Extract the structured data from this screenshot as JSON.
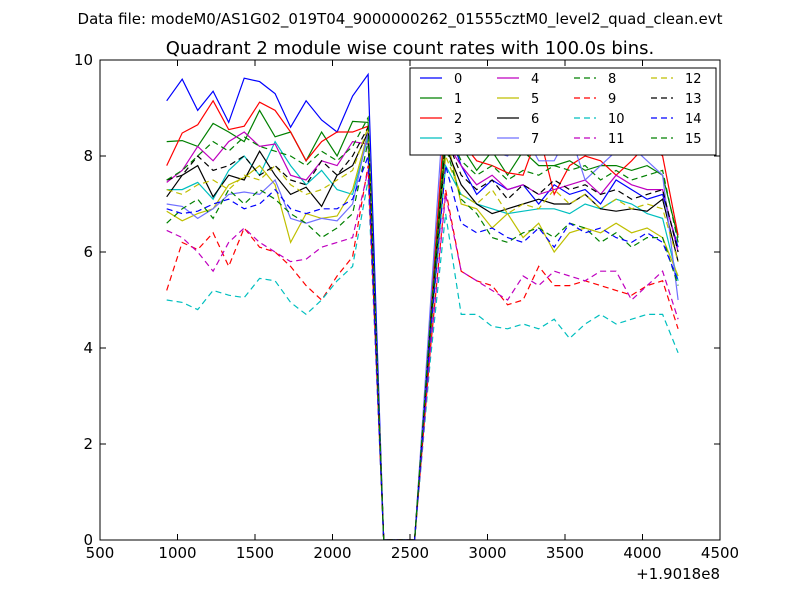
{
  "chart_data": {
    "type": "line",
    "suptitle": "Data file: modeM0/AS1G02_019T04_9000000262_01555cztM0_level2_quad_clean.evt",
    "title": "Quadrant 2 module wise count rates with 100.0s bins.",
    "xlabel": "",
    "ylabel": "",
    "xlim": [
      500,
      4500
    ],
    "ylim": [
      0,
      10
    ],
    "x_offset_label": "+1.9018e8",
    "x_ticks": [
      500,
      1000,
      1500,
      2000,
      2500,
      3000,
      3500,
      4000,
      4500
    ],
    "y_ticks": [
      0,
      2,
      4,
      6,
      8,
      10
    ],
    "legend_position": "top-right",
    "legend_columns": 4,
    "x": [
      930,
      1030,
      1130,
      1230,
      1330,
      1430,
      1530,
      1630,
      1730,
      1830,
      1930,
      2030,
      2130,
      2230,
      2330,
      2430,
      2530,
      2630,
      2730,
      2830,
      2930,
      3030,
      3130,
      3230,
      3330,
      3430,
      3530,
      3630,
      3730,
      3830,
      3930,
      4030,
      4130,
      4230
    ],
    "series": [
      {
        "name": "0",
        "color": "#0000ff",
        "dash": "solid",
        "values": [
          9.15,
          9.6,
          8.95,
          9.35,
          8.7,
          9.62,
          9.55,
          9.3,
          8.6,
          9.15,
          8.75,
          8.5,
          9.25,
          9.7,
          0,
          0,
          0,
          4.5,
          8.7,
          7.8,
          7.2,
          7.5,
          7.3,
          7.4,
          7.0,
          7.4,
          7.2,
          7.3,
          7.0,
          7.5,
          7.3,
          7.1,
          7.2,
          6.1
        ]
      },
      {
        "name": "1",
        "color": "#008000",
        "dash": "solid",
        "values": [
          8.3,
          8.32,
          8.2,
          8.68,
          8.5,
          8.3,
          8.95,
          8.4,
          8.5,
          7.9,
          8.5,
          8.0,
          8.72,
          8.7,
          0,
          0,
          0,
          4.4,
          8.6,
          8.2,
          7.7,
          8.1,
          7.6,
          8.1,
          7.8,
          7.8,
          7.9,
          7.7,
          7.8,
          7.8,
          7.7,
          7.8,
          7.6,
          6.3
        ]
      },
      {
        "name": "2",
        "color": "#ff0000",
        "dash": "solid",
        "values": [
          7.8,
          8.48,
          8.65,
          9.15,
          8.55,
          8.62,
          9.12,
          8.95,
          8.5,
          7.9,
          8.3,
          8.5,
          8.5,
          8.62,
          0,
          0,
          0,
          4.6,
          9.0,
          8.3,
          7.9,
          7.8,
          7.65,
          7.6,
          8.5,
          7.2,
          7.8,
          8.0,
          7.9,
          7.6,
          7.9,
          8.25,
          8.0,
          6.35
        ]
      },
      {
        "name": "3",
        "color": "#00bfbf",
        "dash": "solid",
        "values": [
          7.3,
          7.3,
          7.45,
          7.1,
          7.7,
          8.0,
          7.6,
          8.3,
          7.8,
          7.4,
          7.7,
          7.3,
          7.2,
          8.4,
          0,
          0,
          0,
          4.2,
          7.8,
          7.2,
          7.0,
          6.9,
          6.8,
          6.85,
          6.9,
          6.9,
          6.8,
          7.0,
          6.9,
          7.1,
          7.0,
          6.8,
          6.7,
          5.4
        ]
      },
      {
        "name": "4",
        "color": "#bf00bf",
        "dash": "solid",
        "values": [
          7.45,
          7.7,
          8.2,
          7.9,
          8.3,
          8.5,
          8.2,
          8.25,
          7.6,
          7.5,
          7.9,
          7.8,
          8.3,
          8.25,
          0,
          0,
          0,
          4.3,
          8.3,
          7.8,
          7.4,
          7.6,
          7.3,
          7.4,
          7.2,
          7.3,
          7.4,
          7.5,
          7.2,
          7.6,
          7.4,
          7.3,
          7.3,
          6.0
        ]
      },
      {
        "name": "5",
        "color": "#bfbf00",
        "dash": "solid",
        "values": [
          6.85,
          6.65,
          6.8,
          6.9,
          7.4,
          7.55,
          7.8,
          7.4,
          6.2,
          6.8,
          6.7,
          6.75,
          7.3,
          8.5,
          0,
          0,
          0,
          4.1,
          8.5,
          7.0,
          6.9,
          6.5,
          6.8,
          6.3,
          6.6,
          6.0,
          6.4,
          6.5,
          6.4,
          6.6,
          6.4,
          6.5,
          6.3,
          5.5
        ]
      },
      {
        "name": "6",
        "color": "#000000",
        "dash": "solid",
        "values": [
          7.15,
          7.6,
          7.8,
          7.15,
          7.6,
          7.5,
          8.1,
          7.6,
          7.2,
          7.35,
          6.95,
          7.6,
          7.8,
          8.5,
          0,
          0,
          0,
          4.3,
          8.2,
          7.4,
          7.0,
          6.8,
          6.9,
          7.0,
          7.1,
          7.0,
          7.0,
          7.2,
          6.9,
          6.85,
          6.9,
          6.85,
          7.1,
          5.8
        ]
      },
      {
        "name": "7",
        "color": "#7070ff",
        "dash": "solid",
        "values": [
          7.0,
          6.95,
          6.7,
          6.9,
          7.2,
          7.25,
          7.2,
          7.5,
          6.7,
          6.6,
          6.7,
          6.65,
          7.0,
          8.5,
          0,
          0,
          0,
          4.8,
          9.6,
          8.7,
          8.2,
          8.1,
          8.0,
          8.5,
          7.9,
          7.9,
          8.5,
          7.5,
          7.8,
          8.1,
          8.2,
          7.9,
          7.6,
          5.0
        ]
      },
      {
        "name": "8",
        "color": "#008000",
        "dash": "dashed",
        "values": [
          6.6,
          6.9,
          7.1,
          6.7,
          7.3,
          7.0,
          7.3,
          7.1,
          6.8,
          6.6,
          6.3,
          6.5,
          6.8,
          8.3,
          0,
          0,
          0,
          4.2,
          8.2,
          7.1,
          6.8,
          6.3,
          6.2,
          6.4,
          6.5,
          6.3,
          6.6,
          6.5,
          6.2,
          6.4,
          6.1,
          6.3,
          6.3,
          5.3
        ]
      },
      {
        "name": "9",
        "color": "#ff0000",
        "dash": "dashed",
        "values": [
          5.2,
          6.2,
          6.05,
          6.4,
          5.7,
          6.5,
          6.1,
          6.0,
          5.7,
          5.3,
          5.0,
          5.5,
          5.9,
          7.8,
          0,
          0,
          0,
          3.9,
          7.3,
          5.6,
          5.4,
          5.3,
          4.9,
          5.0,
          5.7,
          5.3,
          5.3,
          5.4,
          5.3,
          5.2,
          5.1,
          5.3,
          5.4,
          4.4
        ]
      },
      {
        "name": "10",
        "color": "#00bfbf",
        "dash": "dashed",
        "values": [
          5.0,
          4.95,
          4.8,
          5.2,
          5.1,
          5.05,
          5.45,
          5.4,
          4.95,
          4.7,
          5.0,
          5.4,
          5.7,
          7.5,
          0,
          0,
          0,
          3.7,
          6.8,
          4.7,
          4.7,
          4.45,
          4.4,
          4.5,
          4.4,
          4.6,
          4.2,
          4.5,
          4.7,
          4.5,
          4.6,
          4.7,
          4.7,
          3.9
        ]
      },
      {
        "name": "11",
        "color": "#bf00bf",
        "dash": "dashed",
        "values": [
          6.45,
          6.3,
          6.0,
          5.6,
          6.2,
          6.5,
          6.2,
          6.0,
          5.8,
          5.85,
          6.1,
          6.2,
          6.3,
          7.7,
          0,
          0,
          0,
          3.9,
          7.2,
          5.6,
          5.4,
          5.2,
          5.0,
          5.5,
          5.3,
          5.6,
          5.5,
          5.4,
          5.6,
          5.6,
          5.0,
          5.3,
          5.6,
          4.6
        ]
      },
      {
        "name": "12",
        "color": "#bfbf00",
        "dash": "dashed",
        "values": [
          7.3,
          7.2,
          7.4,
          7.5,
          7.3,
          7.6,
          7.5,
          7.8,
          7.4,
          7.2,
          7.3,
          7.5,
          7.7,
          8.6,
          0,
          0,
          0,
          4.2,
          8.0,
          7.2,
          7.0,
          7.3,
          6.8,
          7.0,
          6.9,
          7.3,
          7.0,
          7.2,
          6.9,
          7.1,
          6.9,
          7.0,
          6.9,
          5.8
        ]
      },
      {
        "name": "13",
        "color": "#000000",
        "dash": "dashed",
        "values": [
          7.5,
          7.6,
          8.0,
          7.7,
          7.8,
          8.0,
          7.6,
          7.8,
          7.5,
          7.4,
          7.9,
          7.6,
          8.0,
          8.6,
          0,
          0,
          0,
          4.4,
          8.4,
          7.6,
          7.3,
          7.5,
          7.1,
          7.4,
          7.2,
          7.5,
          7.3,
          7.4,
          7.2,
          7.3,
          7.1,
          7.2,
          7.3,
          6.0
        ]
      },
      {
        "name": "14",
        "color": "#0000ff",
        "dash": "dashed",
        "values": [
          6.9,
          6.8,
          6.85,
          7.0,
          7.1,
          6.9,
          7.0,
          7.3,
          6.9,
          6.8,
          6.9,
          6.9,
          7.1,
          8.0,
          0,
          0,
          0,
          4.2,
          7.8,
          6.6,
          6.4,
          6.5,
          6.3,
          6.2,
          6.5,
          6.1,
          6.6,
          6.4,
          6.5,
          6.3,
          6.2,
          6.4,
          6.2,
          5.4
        ]
      },
      {
        "name": "15",
        "color": "#008000",
        "dash": "dashed",
        "values": [
          7.5,
          7.7,
          8.0,
          8.3,
          8.1,
          8.4,
          8.2,
          8.1,
          8.0,
          7.8,
          8.1,
          7.9,
          8.2,
          8.8,
          0,
          0,
          0,
          4.5,
          8.6,
          7.9,
          7.6,
          7.8,
          7.5,
          7.7,
          7.6,
          7.8,
          7.7,
          7.8,
          7.5,
          7.7,
          7.5,
          7.6,
          7.7,
          6.2
        ]
      }
    ]
  }
}
